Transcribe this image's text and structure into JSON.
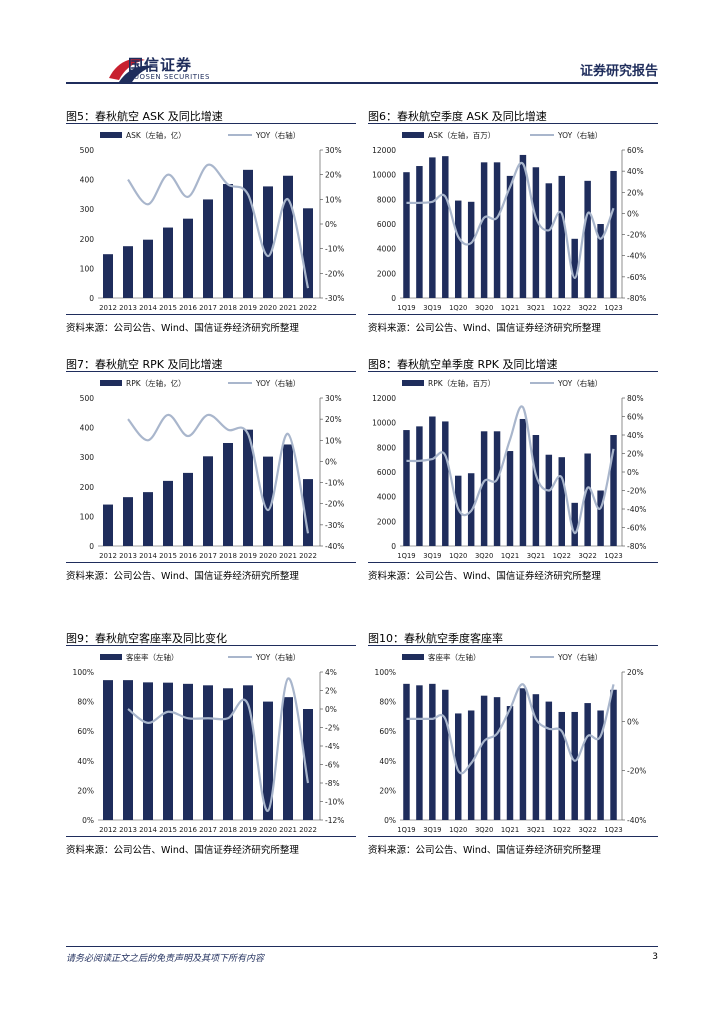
{
  "header": {
    "logo_cn": "国信证券",
    "logo_en": "GUOSEN SECURITIES",
    "report_type": "证券研究报告"
  },
  "footer": {
    "disclaimer": "请务必阅读正文之后的免责声明及其项下所有内容",
    "page": "3"
  },
  "colors": {
    "bar": "#1f2d5c",
    "line": "#a9b6cc",
    "text": "#1a1a1a"
  },
  "panels": [
    {
      "title": "图5：春秋航空 ASK 及同比增速",
      "source": "资料来源：公司公告、Wind、国信证券经济研究所整理"
    },
    {
      "title": "图6：春秋航空季度 ASK 及同比增速",
      "source": "资料来源：公司公告、Wind、国信证券经济研究所整理"
    },
    {
      "title": "图7：春秋航空 RPK 及同比增速",
      "source": "资料来源：公司公告、Wind、国信证券经济研究所整理"
    },
    {
      "title": "图8：春秋航空单季度 RPK 及同比增速",
      "source": "资料来源：公司公告、Wind、国信证券经济研究所整理"
    },
    {
      "title": "图9：春秋航空客座率及同比变化",
      "source": "资料来源：公司公告、Wind、国信证券经济研究所整理"
    },
    {
      "title": "图10：春秋航空季度客座率",
      "source": "资料来源：公司公告、Wind、国信证券经济研究所整理"
    }
  ],
  "chart_data": [
    {
      "type": "bar",
      "title": "图5：春秋航空 ASK 及同比增速",
      "bar_label": "ASK（左轴，亿）",
      "line_label": "YOY（右轴）",
      "categories": [
        "2012",
        "2013",
        "2014",
        "2015",
        "2016",
        "2017",
        "2018",
        "2019",
        "2020",
        "2021",
        "2022"
      ],
      "values": [
        148,
        175,
        197,
        238,
        268,
        333,
        385,
        433,
        377,
        413,
        303
      ],
      "line": [
        null,
        18,
        8,
        20,
        11,
        24,
        16,
        12,
        -13,
        10,
        -26
      ],
      "ylim": [
        0,
        500
      ],
      "yticks": [
        0,
        100,
        200,
        300,
        400,
        500
      ],
      "ytick_labels": [
        "0",
        "100",
        "200",
        "300",
        "400",
        "500"
      ],
      "y2lim": [
        -30,
        30
      ],
      "y2ticks": [
        -30,
        -20,
        -10,
        0,
        10,
        20,
        30
      ],
      "y2tick_labels": [
        "-30%",
        "-20%",
        "-10%",
        "0%",
        "10%",
        "20%",
        "30%"
      ],
      "xtick_labels": [
        "2012",
        "2013",
        "2014",
        "2015",
        "2016",
        "2017",
        "2018",
        "2019",
        "2020",
        "2021",
        "2022"
      ]
    },
    {
      "type": "bar",
      "title": "图6：春秋航空季度 ASK 及同比增速",
      "bar_label": "ASK（左轴，百万）",
      "line_label": "YOY（右轴）",
      "categories": [
        "1Q19",
        "2Q19",
        "3Q19",
        "4Q19",
        "1Q20",
        "2Q20",
        "3Q20",
        "4Q20",
        "1Q21",
        "2Q21",
        "3Q21",
        "4Q21",
        "1Q22",
        "2Q22",
        "3Q22",
        "4Q22",
        "1Q23"
      ],
      "values": [
        10200,
        10700,
        11400,
        11500,
        7900,
        7800,
        11000,
        11000,
        9900,
        11600,
        10600,
        9300,
        9900,
        4800,
        9500,
        6000,
        10300
      ],
      "line": [
        10,
        10,
        11,
        16,
        -22,
        -28,
        -4,
        -4,
        25,
        47,
        -4,
        -16,
        0,
        -61,
        0,
        -24,
        5
      ],
      "ylim": [
        0,
        12000
      ],
      "yticks": [
        0,
        2000,
        4000,
        6000,
        8000,
        10000,
        12000
      ],
      "ytick_labels": [
        "0",
        "2000",
        "4000",
        "6000",
        "8000",
        "10000",
        "12000"
      ],
      "y2lim": [
        -80,
        60
      ],
      "y2ticks": [
        -80,
        -60,
        -40,
        -20,
        0,
        20,
        40,
        60
      ],
      "y2tick_labels": [
        "-80%",
        "-60%",
        "-40%",
        "-20%",
        "0%",
        "20%",
        "40%",
        "60%"
      ],
      "xtick_labels": [
        "1Q19",
        "3Q19",
        "1Q20",
        "3Q20",
        "1Q21",
        "3Q21",
        "1Q22",
        "3Q22",
        "1Q23"
      ]
    },
    {
      "type": "bar",
      "title": "图7：春秋航空 RPK 及同比增速",
      "bar_label": "RPK（左轴，亿）",
      "line_label": "YOY（右轴）",
      "categories": [
        "2012",
        "2013",
        "2014",
        "2015",
        "2016",
        "2017",
        "2018",
        "2019",
        "2020",
        "2021",
        "2022"
      ],
      "values": [
        140,
        165,
        182,
        220,
        247,
        303,
        348,
        393,
        302,
        343,
        226
      ],
      "line": [
        null,
        20,
        10,
        22,
        12,
        22,
        15,
        13,
        -23,
        13,
        -34
      ],
      "ylim": [
        0,
        500
      ],
      "yticks": [
        0,
        100,
        200,
        300,
        400,
        500
      ],
      "ytick_labels": [
        "0",
        "100",
        "200",
        "300",
        "400",
        "500"
      ],
      "y2lim": [
        -40,
        30
      ],
      "y2ticks": [
        -40,
        -30,
        -20,
        -10,
        0,
        10,
        20,
        30
      ],
      "y2tick_labels": [
        "-40%",
        "-30%",
        "-20%",
        "-10%",
        "0%",
        "10%",
        "20%",
        "30%"
      ],
      "xtick_labels": [
        "2012",
        "2013",
        "2014",
        "2015",
        "2016",
        "2017",
        "2018",
        "2019",
        "2020",
        "2021",
        "2022"
      ]
    },
    {
      "type": "bar",
      "title": "图8：春秋航空单季度 RPK 及同比增速",
      "bar_label": "RPK（左轴，百万）",
      "line_label": "YOY（右轴）",
      "categories": [
        "1Q19",
        "2Q19",
        "3Q19",
        "4Q19",
        "1Q20",
        "2Q20",
        "3Q20",
        "4Q20",
        "1Q21",
        "2Q21",
        "3Q21",
        "4Q21",
        "1Q22",
        "2Q22",
        "3Q22",
        "4Q22",
        "1Q23"
      ],
      "values": [
        9400,
        9700,
        10500,
        10100,
        5700,
        5900,
        9300,
        9300,
        7700,
        10300,
        9000,
        7400,
        7200,
        3500,
        7500,
        4500,
        9000
      ],
      "line": [
        12,
        12,
        14,
        18,
        -40,
        -42,
        -10,
        -8,
        35,
        70,
        -3,
        -20,
        -6,
        -66,
        -17,
        -39,
        25
      ],
      "ylim": [
        0,
        12000
      ],
      "yticks": [
        0,
        2000,
        4000,
        6000,
        8000,
        10000,
        12000
      ],
      "ytick_labels": [
        "0",
        "2000",
        "4000",
        "6000",
        "8000",
        "10000",
        "12000"
      ],
      "y2lim": [
        -80,
        80
      ],
      "y2ticks": [
        -80,
        -60,
        -40,
        -20,
        0,
        20,
        40,
        60,
        80
      ],
      "y2tick_labels": [
        "-80%",
        "-60%",
        "-40%",
        "-20%",
        "0%",
        "20%",
        "40%",
        "60%",
        "80%"
      ],
      "xtick_labels": [
        "1Q19",
        "3Q19",
        "1Q20",
        "3Q20",
        "1Q21",
        "3Q21",
        "1Q22",
        "3Q22",
        "1Q23"
      ]
    },
    {
      "type": "bar",
      "title": "图9：春秋航空客座率及同比变化",
      "bar_label": "客座率（左轴）",
      "line_label": "YOY（右轴）",
      "categories": [
        "2012",
        "2013",
        "2014",
        "2015",
        "2016",
        "2017",
        "2018",
        "2019",
        "2020",
        "2021",
        "2022"
      ],
      "values": [
        94.5,
        94.5,
        93.0,
        92.8,
        92.0,
        91.0,
        89.0,
        91.0,
        80.0,
        83.0,
        75.0
      ],
      "line": [
        null,
        0,
        -1.5,
        -0.3,
        -1,
        -1,
        -1,
        0.5,
        -11,
        3.3,
        -8
      ],
      "ylim": [
        0,
        100
      ],
      "yticks": [
        0,
        20,
        40,
        60,
        80,
        100
      ],
      "ytick_labels": [
        "0%",
        "20%",
        "40%",
        "60%",
        "80%",
        "100%"
      ],
      "y2lim": [
        -12,
        4
      ],
      "y2ticks": [
        -12,
        -10,
        -8,
        -6,
        -4,
        -2,
        0,
        2,
        4
      ],
      "y2tick_labels": [
        "-12%",
        "-10%",
        "-8%",
        "-6%",
        "-4%",
        "-2%",
        "0%",
        "2%",
        "4%"
      ],
      "xtick_labels": [
        "2012",
        "2013",
        "2014",
        "2015",
        "2016",
        "2017",
        "2018",
        "2019",
        "2020",
        "2021",
        "2022"
      ]
    },
    {
      "type": "bar",
      "title": "图10：春秋航空季度客座率",
      "bar_label": "客座率（左轴）",
      "line_label": "YOY（右轴）",
      "categories": [
        "1Q19",
        "2Q19",
        "3Q19",
        "4Q19",
        "1Q20",
        "2Q20",
        "3Q20",
        "4Q20",
        "1Q21",
        "2Q21",
        "3Q21",
        "4Q21",
        "1Q22",
        "2Q22",
        "3Q22",
        "4Q22",
        "1Q23"
      ],
      "values": [
        92,
        91,
        92,
        88,
        72,
        74,
        84,
        83,
        77,
        89,
        85,
        80,
        73,
        73,
        79,
        74,
        88
      ],
      "line": [
        1,
        1,
        1,
        1,
        -20,
        -17,
        -8,
        -5,
        5,
        15,
        1,
        -3,
        -4,
        -16,
        -6,
        -6,
        15
      ],
      "ylim": [
        0,
        100
      ],
      "yticks": [
        0,
        20,
        40,
        60,
        80,
        100
      ],
      "ytick_labels": [
        "0%",
        "20%",
        "40%",
        "60%",
        "80%",
        "100%"
      ],
      "y2lim": [
        -40,
        20
      ],
      "y2ticks": [
        -40,
        -20,
        0,
        20
      ],
      "y2tick_labels": [
        "-40%",
        "-20%",
        "0%",
        "20%"
      ],
      "xtick_labels": [
        "1Q19",
        "3Q19",
        "1Q20",
        "3Q20",
        "1Q21",
        "3Q21",
        "1Q22",
        "3Q22",
        "1Q23"
      ]
    }
  ]
}
